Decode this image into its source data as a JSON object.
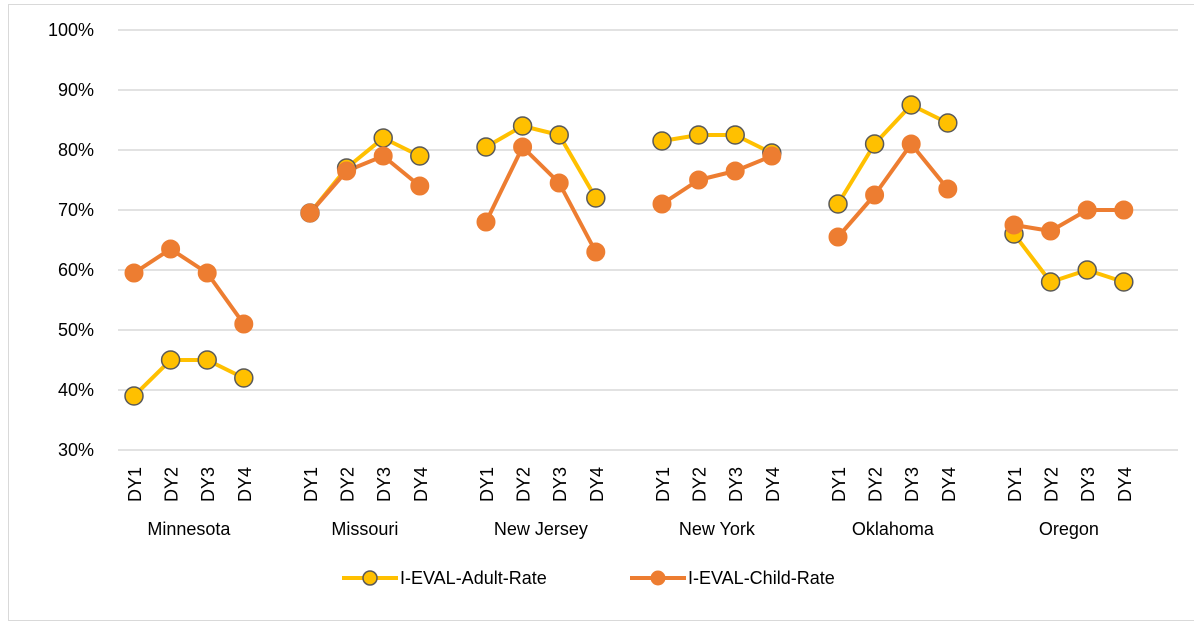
{
  "chart_data": {
    "type": "line",
    "ylim": [
      0.3,
      1.0
    ],
    "yticks": [
      "30%",
      "40%",
      "50%",
      "60%",
      "70%",
      "80%",
      "90%",
      "100%"
    ],
    "yticks_values": [
      0.3,
      0.4,
      0.5,
      0.6,
      0.7,
      0.8,
      0.9,
      1.0
    ],
    "grid": true,
    "legend_position": "bottom",
    "groups": [
      "Minnesota",
      "Missouri",
      "New Jersey",
      "New York",
      "Oklahoma",
      "Oregon"
    ],
    "categories": [
      "DY1",
      "DY2",
      "DY3",
      "DY4"
    ],
    "series": [
      {
        "name": "I-EVAL-Adult-Rate",
        "color": "#FFC000",
        "marker_fill": "#FFC000",
        "marker_stroke": "#595959",
        "values": [
          [
            0.39,
            0.45,
            0.45,
            0.42
          ],
          [
            0.695,
            0.77,
            0.82,
            0.79
          ],
          [
            0.805,
            0.84,
            0.825,
            0.72
          ],
          [
            0.815,
            0.825,
            0.825,
            0.795
          ],
          [
            0.71,
            0.81,
            0.875,
            0.845
          ],
          [
            0.66,
            0.58,
            0.6,
            0.58
          ]
        ]
      },
      {
        "name": "I-EVAL-Child-Rate",
        "color": "#ED7D31",
        "marker_fill": "#ED7D31",
        "marker_stroke": "#ED7D31",
        "values": [
          [
            0.595,
            0.635,
            0.595,
            0.51
          ],
          [
            0.695,
            0.765,
            0.79,
            0.74
          ],
          [
            0.68,
            0.805,
            0.745,
            0.63
          ],
          [
            0.71,
            0.75,
            0.765,
            0.79
          ],
          [
            0.655,
            0.725,
            0.81,
            0.735
          ],
          [
            0.675,
            0.665,
            0.7,
            0.7
          ]
        ]
      }
    ]
  }
}
